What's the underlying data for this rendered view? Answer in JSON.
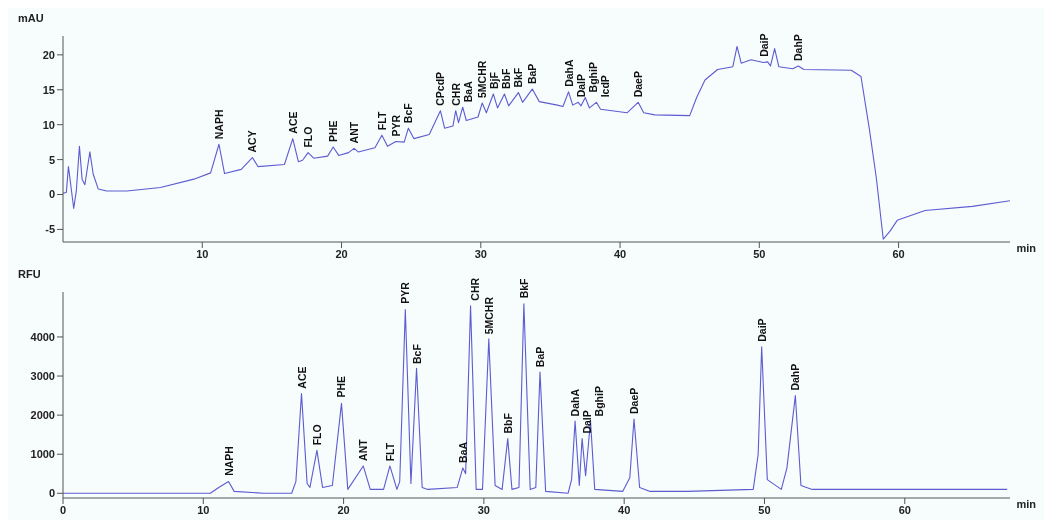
{
  "chart_data": [
    {
      "type": "line",
      "ylabel": "mAU",
      "xlabel": "min",
      "xlim": [
        0,
        68
      ],
      "ylim": [
        -6.8,
        22.7
      ],
      "xticks": [
        10,
        20,
        30,
        40,
        50,
        60
      ],
      "yticks": [
        -5,
        0,
        5,
        10,
        15,
        20
      ],
      "grid": false,
      "legend": false,
      "marker": "none",
      "line_style": "solid",
      "series": [
        {
          "color": "#5c5cd0",
          "x": [
            0,
            0.24,
            0.39,
            0.58,
            0.77,
            0.96,
            1.18,
            1.37,
            1.57,
            1.93,
            2.17,
            2.53,
            3.13,
            4.58,
            7.0,
            9.4,
            10.6,
            11.2,
            11.6,
            12.8,
            13.6,
            14.0,
            15.9,
            16.5,
            16.9,
            17.2,
            17.6,
            18.0,
            19.0,
            19.4,
            19.8,
            20.5,
            20.9,
            21.2,
            22.4,
            22.9,
            23.3,
            23.9,
            24.5,
            24.8,
            25.2,
            26.3,
            27.1,
            27.4,
            28.0,
            28.2,
            28.4,
            28.7,
            28.96,
            29.8,
            30.1,
            30.4,
            30.9,
            31.2,
            31.7,
            32.0,
            32.7,
            33.0,
            33.7,
            34.2,
            35.5,
            35.9,
            36.3,
            36.6,
            37.0,
            37.2,
            37.5,
            37.8,
            38.3,
            38.6,
            40.5,
            41.3,
            41.7,
            42.5,
            45.0,
            45.5,
            46.1,
            47.0,
            48.1,
            48.4,
            48.7,
            49.4,
            50.3,
            50.6,
            50.8,
            51.1,
            51.4,
            52.4,
            52.8,
            53.2,
            56.6,
            57.3,
            57.9,
            58.4,
            58.9,
            59.4,
            59.9,
            61.9,
            65.3,
            68.0
          ],
          "values": [
            0.2,
            0.3,
            4.0,
            1.0,
            -2.0,
            0.6,
            6.9,
            2.2,
            1.4,
            6.1,
            2.9,
            0.8,
            0.5,
            0.5,
            1.0,
            2.2,
            3.1,
            7.2,
            3.0,
            3.6,
            5.3,
            4.0,
            4.3,
            8.0,
            4.7,
            4.9,
            6.0,
            5.2,
            5.5,
            6.8,
            5.6,
            6.0,
            6.6,
            6.1,
            6.7,
            8.5,
            6.9,
            7.6,
            7.5,
            9.5,
            8.0,
            8.6,
            12.0,
            9.5,
            9.8,
            12.0,
            10.3,
            12.5,
            10.6,
            11.1,
            13.1,
            11.7,
            14.4,
            12.4,
            14.4,
            12.7,
            14.6,
            13.2,
            15.1,
            13.3,
            12.8,
            12.6,
            14.7,
            12.8,
            13.2,
            12.7,
            13.9,
            12.4,
            13.2,
            12.2,
            11.7,
            13.2,
            11.7,
            11.4,
            11.3,
            13.9,
            16.4,
            17.9,
            18.3,
            21.2,
            18.8,
            19.3,
            18.9,
            19.0,
            18.4,
            20.9,
            18.3,
            18.0,
            18.4,
            17.9,
            17.8,
            16.9,
            9.4,
            2.4,
            -6.4,
            -5.2,
            -3.7,
            -2.3,
            -1.7,
            -0.9
          ]
        }
      ],
      "annotations": [
        {
          "text": "NAPH",
          "x": 11.2,
          "y": 7.2
        },
        {
          "text": "ACY",
          "x": 13.6,
          "y": 5.3
        },
        {
          "text": "ACE",
          "x": 16.5,
          "y": 8.0
        },
        {
          "text": "FLO",
          "x": 17.6,
          "y": 6.0
        },
        {
          "text": "PHE",
          "x": 19.4,
          "y": 6.8
        },
        {
          "text": "ANT",
          "x": 20.9,
          "y": 6.6
        },
        {
          "text": "FLT",
          "x": 22.9,
          "y": 8.5
        },
        {
          "text": "PYR",
          "x": 23.9,
          "y": 7.6
        },
        {
          "text": "BcF",
          "x": 24.8,
          "y": 9.5
        },
        {
          "text": "CPcdP",
          "x": 27.1,
          "y": 12.0
        },
        {
          "text": "CHR",
          "x": 28.2,
          "y": 12.0
        },
        {
          "text": "BaA",
          "x": 28.7,
          "y": 12.5
        },
        {
          "text": "5MCHR",
          "x": 30.1,
          "y": 13.1
        },
        {
          "text": "BjF",
          "x": 30.9,
          "y": 14.4
        },
        {
          "text": "BbF",
          "x": 31.7,
          "y": 14.4
        },
        {
          "text": "BkF",
          "x": 32.7,
          "y": 14.6
        },
        {
          "text": "BaP",
          "x": 33.7,
          "y": 15.1
        },
        {
          "text": "DahA",
          "x": 36.3,
          "y": 14.7
        },
        {
          "text": "DalP",
          "x": 37.0,
          "y": 13.2
        },
        {
          "text": "BghiP",
          "x": 37.5,
          "y": 13.9
        },
        {
          "text": "IcdP",
          "x": 38.3,
          "y": 13.2
        },
        {
          "text": "DaeP",
          "x": 41.3,
          "y": 13.2
        },
        {
          "text": "DaiP",
          "x": 50.3,
          "y": 19.0
        },
        {
          "text": "DahP",
          "x": 52.8,
          "y": 18.4
        }
      ]
    },
    {
      "type": "line",
      "ylabel": "RFU",
      "xlabel": "min",
      "xlim": [
        0,
        67.5
      ],
      "ylim": [
        -120,
        5150
      ],
      "xticks": [
        0,
        10,
        20,
        30,
        40,
        50,
        60
      ],
      "yticks": [
        0,
        1000,
        2000,
        3000,
        4000
      ],
      "grid": false,
      "legend": false,
      "marker": "none",
      "line_style": "solid",
      "series": [
        {
          "color": "#5c5cd0",
          "x": [
            0,
            10.5,
            11.1,
            11.8,
            12.2,
            14.3,
            16.3,
            16.6,
            17.0,
            17.4,
            17.6,
            18.1,
            18.5,
            19.2,
            19.85,
            20.3,
            21.4,
            21.9,
            22.85,
            23.3,
            23.8,
            24.0,
            24.4,
            24.8,
            25.2,
            25.6,
            26.0,
            28.1,
            28.5,
            28.7,
            29.05,
            29.45,
            29.9,
            30.35,
            30.8,
            31.3,
            31.7,
            32.0,
            32.5,
            32.85,
            33.3,
            33.7,
            34.0,
            34.4,
            36.0,
            36.25,
            36.5,
            36.8,
            37.0,
            37.25,
            37.6,
            37.9,
            39.9,
            40.4,
            40.7,
            41.1,
            41.8,
            44.5,
            49.2,
            49.55,
            49.8,
            50.2,
            51.2,
            51.6,
            52.2,
            52.6,
            53.4,
            67.3
          ],
          "values": [
            0,
            0,
            150,
            300,
            50,
            0,
            0,
            300,
            2550,
            250,
            150,
            1100,
            150,
            200,
            2300,
            100,
            700,
            100,
            100,
            700,
            100,
            300,
            4700,
            250,
            3200,
            150,
            100,
            150,
            650,
            500,
            4800,
            100,
            100,
            3950,
            200,
            100,
            1400,
            100,
            150,
            4850,
            100,
            150,
            3100,
            50,
            0,
            350,
            1850,
            200,
            1400,
            450,
            1850,
            100,
            50,
            400,
            1900,
            150,
            50,
            50,
            100,
            1000,
            3750,
            350,
            100,
            650,
            2500,
            200,
            100,
            100
          ]
        }
      ],
      "annotations": [
        {
          "text": "NAPH",
          "x": 11.8,
          "y": 320
        },
        {
          "text": "ACE",
          "x": 17.0,
          "y": 2550
        },
        {
          "text": "FLO",
          "x": 18.1,
          "y": 1100
        },
        {
          "text": "PHE",
          "x": 19.85,
          "y": 2320
        },
        {
          "text": "ANT",
          "x": 21.4,
          "y": 700
        },
        {
          "text": "FLT",
          "x": 23.3,
          "y": 690
        },
        {
          "text": "PYR",
          "x": 24.4,
          "y": 4720
        },
        {
          "text": "BcF",
          "x": 25.2,
          "y": 3180
        },
        {
          "text": "BaA",
          "x": 28.5,
          "y": 650
        },
        {
          "text": "CHR",
          "x": 29.05,
          "y": 4800
        },
        {
          "text": "5MCHR",
          "x": 30.35,
          "y": 3940
        },
        {
          "text": "BbF",
          "x": 31.7,
          "y": 1400
        },
        {
          "text": "BkF",
          "x": 32.85,
          "y": 4860
        },
        {
          "text": "BaP",
          "x": 34.0,
          "y": 3100
        },
        {
          "text": "DahA",
          "x": 36.5,
          "y": 1840
        },
        {
          "text": "DalP",
          "x": 37.0,
          "y": 1400
        },
        {
          "text": "BghiP",
          "x": 37.6,
          "y": 1840
        },
        {
          "text": "DaeP",
          "x": 40.7,
          "y": 1900
        },
        {
          "text": "DaiP",
          "x": 49.8,
          "y": 3750
        },
        {
          "text": "DahP",
          "x": 52.2,
          "y": 2500
        }
      ]
    }
  ]
}
